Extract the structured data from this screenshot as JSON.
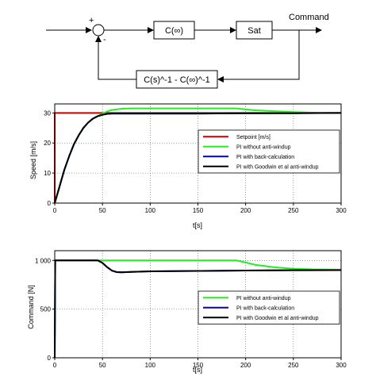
{
  "diagram": {
    "sum_plus": "+",
    "sum_minus": "-",
    "block_c_inf": "C(∞)",
    "block_sat": "Sat",
    "block_feedback": "C(s)^-1 - C(∞)^-1",
    "output_label": "Command"
  },
  "colors": {
    "setpoint": "#d00000",
    "pi_no_antiwindup": "#22ee22",
    "pi_back_calc": "#0000cc",
    "pi_goodwin": "#000000"
  },
  "chart_data": [
    {
      "type": "line",
      "title": "",
      "xlabel": "t[s]",
      "ylabel": "Speed [m/s]",
      "xlim": [
        0,
        300
      ],
      "ylim": [
        0,
        33
      ],
      "xticks": [
        0,
        50,
        100,
        150,
        200,
        250,
        300
      ],
      "yticks": [
        0,
        10,
        20,
        30
      ],
      "grid": true,
      "legend_position": "middle-right",
      "series": [
        {
          "name": "Setpoint [m/s]",
          "color": "setpoint",
          "x": [
            0,
            0,
            300
          ],
          "y": [
            0,
            30,
            30
          ]
        },
        {
          "name": "PI without anti-windup",
          "color": "pi_no_antiwindup",
          "x": [
            0,
            5,
            10,
            15,
            20,
            25,
            30,
            35,
            40,
            45,
            50,
            55,
            60,
            70,
            80,
            100,
            150,
            190,
            200,
            210,
            230,
            250,
            270,
            300
          ],
          "y": [
            0,
            5.5,
            11,
            15.5,
            19.5,
            22.5,
            25,
            26.8,
            28.1,
            29,
            29.8,
            30.5,
            31,
            31.4,
            31.5,
            31.5,
            31.5,
            31.5,
            31.2,
            30.9,
            30.6,
            30.3,
            30.1,
            30
          ]
        },
        {
          "name": "PI with back-calculation",
          "color": "pi_back_calc",
          "x": [
            0,
            5,
            10,
            15,
            20,
            25,
            30,
            35,
            40,
            45,
            50,
            55,
            60,
            70,
            80,
            100,
            150,
            200,
            250,
            300
          ],
          "y": [
            0,
            5.5,
            11,
            15.5,
            19.5,
            22.5,
            25,
            26.8,
            28.1,
            28.9,
            29.4,
            29.7,
            29.8,
            29.8,
            29.8,
            29.8,
            29.8,
            29.9,
            29.9,
            30
          ]
        },
        {
          "name": "PI with Goodwin et al anti-windup",
          "color": "pi_goodwin",
          "x": [
            0,
            5,
            10,
            15,
            20,
            25,
            30,
            35,
            40,
            45,
            50,
            55,
            60,
            70,
            80,
            100,
            150,
            200,
            250,
            300
          ],
          "y": [
            0,
            5.5,
            11,
            15.5,
            19.5,
            22.5,
            25,
            26.8,
            28.1,
            28.9,
            29.4,
            29.7,
            29.8,
            29.8,
            29.8,
            29.8,
            29.8,
            29.9,
            29.9,
            30
          ]
        }
      ]
    },
    {
      "type": "line",
      "title": "",
      "xlabel": "t[s]",
      "ylabel": "Command [N]",
      "xlim": [
        0,
        300
      ],
      "ylim": [
        0,
        1100
      ],
      "xticks": [
        0,
        50,
        100,
        150,
        200,
        250,
        300
      ],
      "yticks": [
        0,
        500,
        1000
      ],
      "grid": true,
      "legend_position": "bottom-right",
      "series": [
        {
          "name": "PI without anti-windup",
          "color": "pi_no_antiwindup",
          "x": [
            0,
            0.5,
            50,
            190,
            200,
            210,
            230,
            250,
            270,
            300
          ],
          "y": [
            0,
            1000,
            1000,
            1000,
            980,
            955,
            930,
            915,
            908,
            905
          ]
        },
        {
          "name": "PI with back-calculation",
          "color": "pi_back_calc",
          "x": [
            0,
            0.5,
            45,
            50,
            55,
            60,
            65,
            70,
            80,
            100,
            150,
            200,
            250,
            300
          ],
          "y": [
            0,
            1000,
            1000,
            975,
            930,
            895,
            880,
            878,
            882,
            888,
            892,
            896,
            899,
            900
          ]
        },
        {
          "name": "PI with Goodwin et al anti-windup",
          "color": "pi_goodwin",
          "x": [
            0,
            0.5,
            45,
            50,
            55,
            60,
            65,
            70,
            80,
            100,
            150,
            200,
            250,
            300
          ],
          "y": [
            0,
            1000,
            1000,
            975,
            930,
            895,
            880,
            878,
            882,
            888,
            892,
            896,
            899,
            900
          ]
        }
      ]
    }
  ]
}
